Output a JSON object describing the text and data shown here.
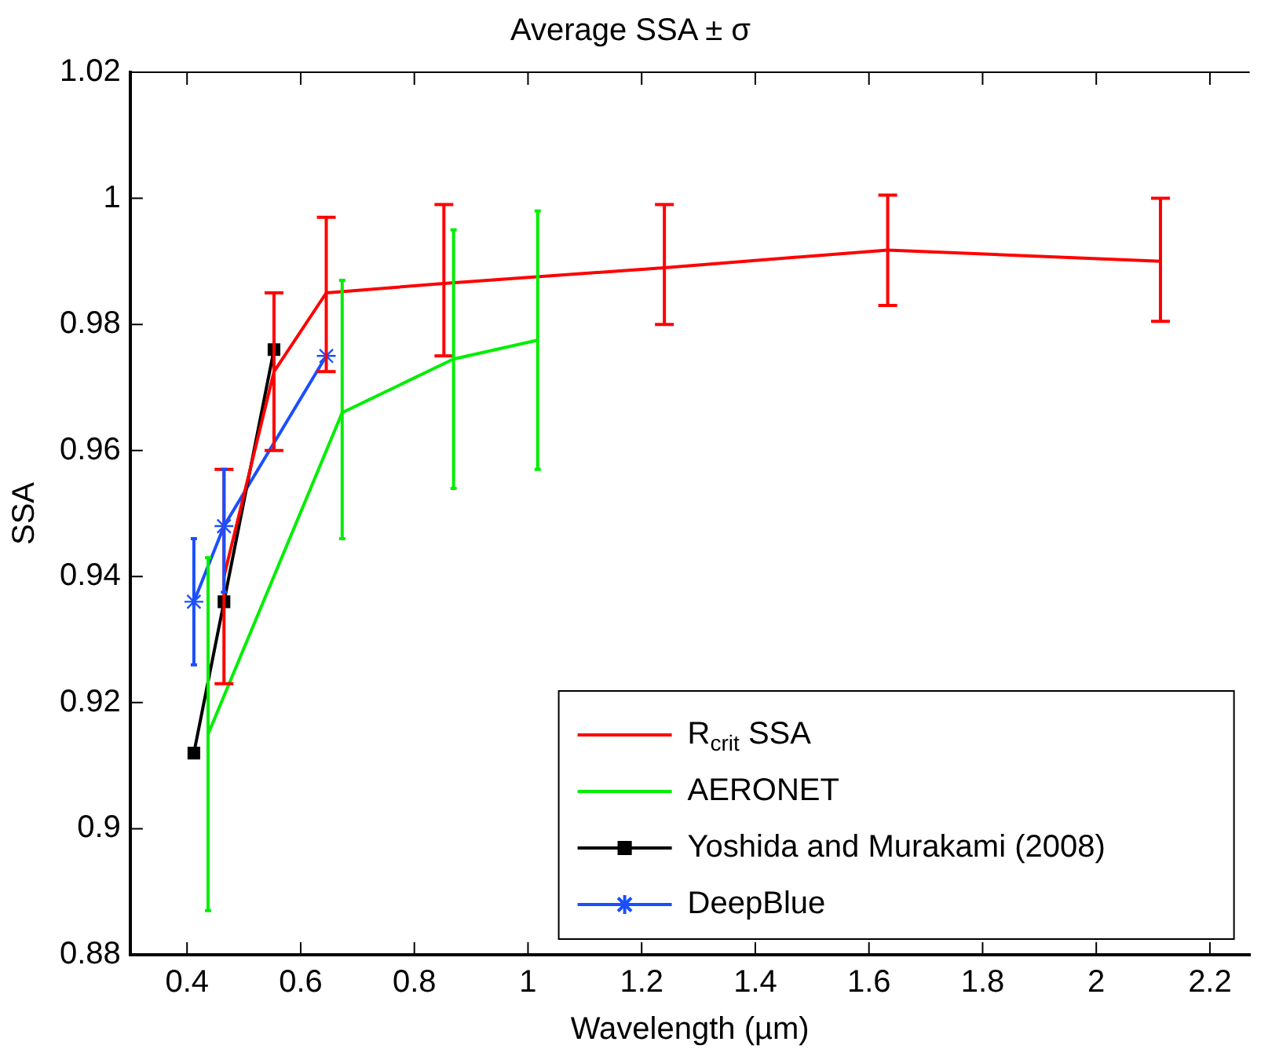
{
  "chart_data": {
    "type": "line",
    "title": "Average SSA ± σ",
    "xlabel": "Wavelength (µm)",
    "ylabel": "SSA",
    "xlim": [
      0.3,
      2.27
    ],
    "xticks": [
      0.4,
      0.6,
      0.8,
      1,
      1.2,
      1.4,
      1.6,
      1.8,
      2,
      2.2
    ],
    "ylim": [
      0.88,
      1.02
    ],
    "yticks": [
      0.88,
      0.9,
      0.92,
      0.94,
      0.96,
      0.98,
      1,
      1.02
    ],
    "grid": false,
    "legend": "bottom right",
    "series": [
      {
        "name": "R$_{crit}$ SSA",
        "color": "#ff0000",
        "marker": "none",
        "x": [
          0.465,
          0.553,
          0.645,
          0.852,
          1.24,
          1.633,
          2.113
        ],
        "values": [
          0.94,
          0.9725,
          0.985,
          0.9865,
          0.989,
          0.9918,
          0.99
        ],
        "errors": [
          [
            0.923,
            0.957
          ],
          [
            0.96,
            0.985
          ],
          [
            0.9725,
            0.997
          ],
          [
            0.975,
            0.999
          ],
          [
            0.98,
            0.999
          ],
          [
            0.983,
            1.0005
          ],
          [
            0.9805,
            1.0
          ]
        ]
      },
      {
        "name": "AERONET",
        "color": "#00ee00",
        "marker": "none",
        "x": [
          0.437,
          0.673,
          0.869,
          1.017
        ],
        "values": [
          0.915,
          0.966,
          0.9745,
          0.9775
        ],
        "errors": [
          [
            0.887,
            0.943
          ],
          [
            0.946,
            0.987
          ],
          [
            0.954,
            0.995
          ],
          [
            0.957,
            0.998
          ]
        ]
      },
      {
        "name": "Yoshida and Murakami (2008)",
        "color": "#000000",
        "marker": "square",
        "x": [
          0.412,
          0.465,
          0.553
        ],
        "values": [
          0.912,
          0.936,
          0.976
        ]
      },
      {
        "name": "DeepBlue",
        "color": "#1a4fff",
        "marker": "cross",
        "x": [
          0.412,
          0.465,
          0.645
        ],
        "values": [
          0.936,
          0.948,
          0.975
        ],
        "errors": [
          [
            0.926,
            0.946
          ],
          [
            0.9375,
            0.957
          ],
          null
        ]
      }
    ]
  }
}
